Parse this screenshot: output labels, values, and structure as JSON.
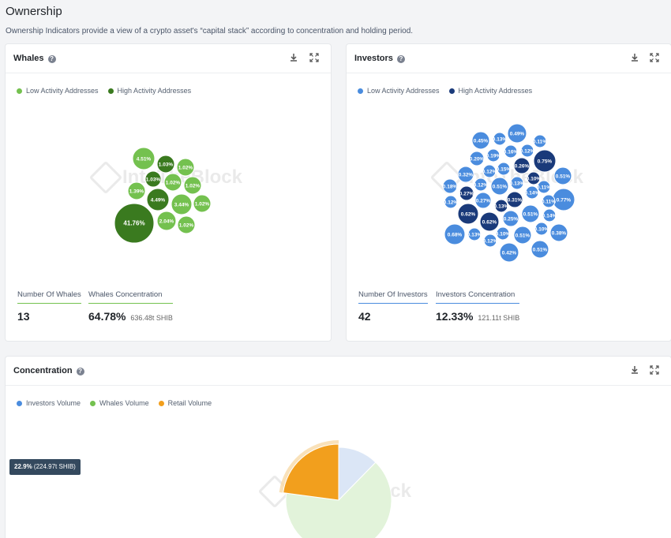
{
  "page": {
    "title": "Ownership",
    "subtitle": "Ownership Indicators provide a view of a crypto asset's “capital stack” according to concentration and holding period."
  },
  "watermark": "IntoTheBlock",
  "icons": {
    "download": "download-icon",
    "expand": "expand-icon",
    "help": "help-icon"
  },
  "colors": {
    "whale_low": "#74c14f",
    "whale_high": "#3a7a1f",
    "investor_low": "#4a8cde",
    "investor_high": "#1a3a7a",
    "retail": "#f29f1d"
  },
  "whales": {
    "title": "Whales",
    "legend": [
      "Low Activity Addresses",
      "High Activity Addresses"
    ],
    "bubbles": [
      {
        "label": "4.51%",
        "high": false
      },
      {
        "label": "1.03%",
        "high": true
      },
      {
        "label": "1.02%",
        "high": false
      },
      {
        "label": "1.03%",
        "high": true
      },
      {
        "label": "1.02%",
        "high": false
      },
      {
        "label": "1.02%",
        "high": false
      },
      {
        "label": "1.39%",
        "high": false
      },
      {
        "label": "4.49%",
        "high": true
      },
      {
        "label": "3.44%",
        "high": false
      },
      {
        "label": "1.02%",
        "high": false
      },
      {
        "label": "41.76%",
        "high": true
      },
      {
        "label": "2.04%",
        "high": false
      },
      {
        "label": "1.02%",
        "high": false
      }
    ],
    "count_label": "Number Of Whales",
    "count_value": "13",
    "concentration_label": "Whales Concentration",
    "concentration_value": "64.78%",
    "concentration_sub": "636.48t SHIB"
  },
  "investors": {
    "title": "Investors",
    "legend": [
      "Low Activity Addresses",
      "High Activity Addresses"
    ],
    "bubbles": [
      {
        "label": "0.49%",
        "high": false
      },
      {
        "label": "0.45%",
        "high": false
      },
      {
        "label": "0.13%",
        "high": false
      },
      {
        "label": "0.11%",
        "high": false
      },
      {
        "label": "0.16%",
        "high": false
      },
      {
        "label": "0.12%",
        "high": false
      },
      {
        "label": "0.20%",
        "high": false
      },
      {
        "label": "0.19%",
        "high": false
      },
      {
        "label": "0.75%",
        "high": true
      },
      {
        "label": "0.26%",
        "high": true
      },
      {
        "label": "0.15%",
        "high": false
      },
      {
        "label": "0.12%",
        "high": false
      },
      {
        "label": "0.32%",
        "high": false
      },
      {
        "label": "0.51%",
        "high": false
      },
      {
        "label": "0.10%",
        "high": true
      },
      {
        "label": "0.51%",
        "high": false
      },
      {
        "label": "0.18%",
        "high": false
      },
      {
        "label": "0.12%",
        "high": false
      },
      {
        "label": "0.13%",
        "high": false
      },
      {
        "label": "0.11%",
        "high": false
      },
      {
        "label": "0.27%",
        "high": true
      },
      {
        "label": "0.14%",
        "high": false
      },
      {
        "label": "0.27%",
        "high": false
      },
      {
        "label": "0.31%",
        "high": true
      },
      {
        "label": "0.77%",
        "high": false
      },
      {
        "label": "0.12%",
        "high": false
      },
      {
        "label": "0.13%",
        "high": true
      },
      {
        "label": "0.11%",
        "high": false
      },
      {
        "label": "0.62%",
        "high": true
      },
      {
        "label": "0.25%",
        "high": false
      },
      {
        "label": "0.51%",
        "high": false
      },
      {
        "label": "0.14%",
        "high": false
      },
      {
        "label": "0.62%",
        "high": true
      },
      {
        "label": "0.10%",
        "high": false
      },
      {
        "label": "0.68%",
        "high": false
      },
      {
        "label": "0.13%",
        "high": false
      },
      {
        "label": "0.10%",
        "high": false
      },
      {
        "label": "0.51%",
        "high": false
      },
      {
        "label": "0.38%",
        "high": false
      },
      {
        "label": "0.12%",
        "high": false
      },
      {
        "label": "0.42%",
        "high": false
      },
      {
        "label": "0.51%",
        "high": false
      }
    ],
    "count_label": "Number Of Investors",
    "count_value": "42",
    "concentration_label": "Investors Concentration",
    "concentration_value": "12.33%",
    "concentration_sub": "121.11t SHIB"
  },
  "concentration": {
    "title": "Concentration",
    "legend": [
      "Investors Volume",
      "Whales Volume",
      "Retail Volume"
    ],
    "tooltip_value": "22.9%",
    "tooltip_sub": "(224.97t SHIB)"
  },
  "chart_data": {
    "type": "pie",
    "categories": [
      "Investors Volume",
      "Whales Volume",
      "Retail Volume"
    ],
    "values": [
      12.33,
      64.78,
      22.9
    ],
    "highlighted": "Retail Volume"
  }
}
